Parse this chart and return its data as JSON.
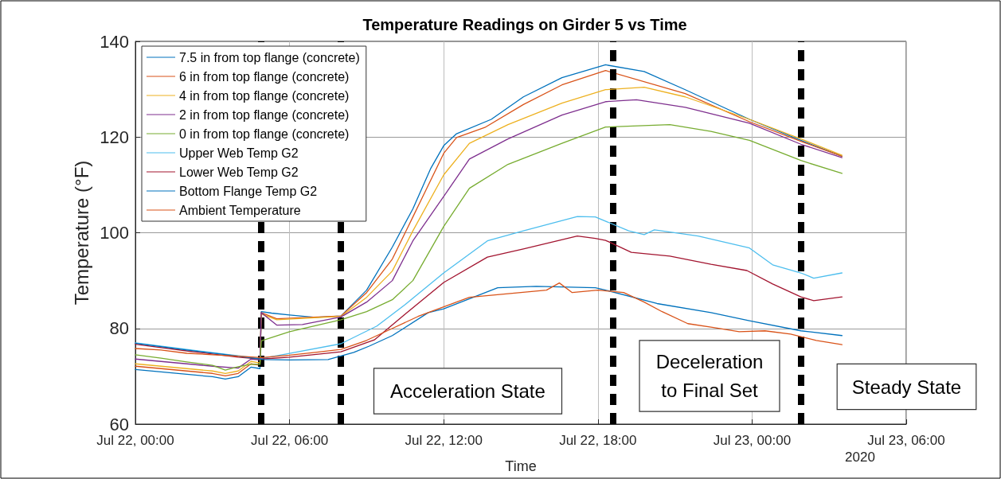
{
  "chart_data": {
    "type": "line",
    "title": "Temperature Readings on Girder 5 vs Time",
    "xlabel": "Time",
    "ylabel": "Temperature (°F)",
    "xlim": [
      "2020-07-22T00:00",
      "2020-07-23T06:00"
    ],
    "xticks": [
      {
        "value": "2020-07-22T00:00",
        "label": "Jul 22, 00:00"
      },
      {
        "value": "2020-07-22T06:00",
        "label": "Jul 22, 06:00"
      },
      {
        "value": "2020-07-22T12:00",
        "label": "Jul 22, 12:00"
      },
      {
        "value": "2020-07-22T18:00",
        "label": "Jul 22, 18:00"
      },
      {
        "value": "2020-07-23T00:00",
        "label": "Jul 23, 00:00"
      },
      {
        "value": "2020-07-23T06:00",
        "label": "Jul 23, 06:00"
      }
    ],
    "ylim": [
      60,
      140
    ],
    "yticks": [
      60,
      80,
      100,
      120,
      140
    ],
    "grid": true,
    "legend": "top left",
    "marker": "none",
    "line_style": "solid",
    "series": [
      {
        "name": "7.5 in from top flange (concrete)",
        "color": "#0072bd",
        "x": [
          "2020-07-22T00:00",
          "2020-07-22T01:00",
          "2020-07-22T02:00",
          "2020-07-22T03:00",
          "2020-07-22T03:30",
          "2020-07-22T04:00",
          "2020-07-22T04:30",
          "2020-07-22T04:51",
          "2020-07-22T04:54",
          "2020-07-22T05:18",
          "2020-07-22T06:00",
          "2020-07-22T07:00",
          "2020-07-22T08:00",
          "2020-07-22T09:00",
          "2020-07-22T10:00",
          "2020-07-22T10:48",
          "2020-07-22T11:30",
          "2020-07-22T12:00",
          "2020-07-22T12:30",
          "2020-07-22T13:51",
          "2020-07-22T15:06",
          "2020-07-22T16:36",
          "2020-07-22T18:18",
          "2020-07-22T19:48",
          "2020-07-22T21:24",
          "2020-07-22T23:54",
          "2020-07-23T01:54",
          "2020-07-23T03:30"
        ],
        "values": [
          71.4,
          70.9,
          70.4,
          69.9,
          69.4,
          69.9,
          71.9,
          71.6,
          83.5,
          83.2,
          82.8,
          82.3,
          82.6,
          88,
          97,
          105,
          113.5,
          118.2,
          120.7,
          123.7,
          128.4,
          132.4,
          135.1,
          133.7,
          129.9,
          123.7,
          119.3,
          116
        ]
      },
      {
        "name": "6 in from top flange (concrete)",
        "color": "#d95319",
        "x": [
          "2020-07-22T00:00",
          "2020-07-22T01:00",
          "2020-07-22T02:00",
          "2020-07-22T03:00",
          "2020-07-22T03:30",
          "2020-07-22T04:00",
          "2020-07-22T04:30",
          "2020-07-22T04:51",
          "2020-07-22T04:54",
          "2020-07-22T05:30",
          "2020-07-22T08:00",
          "2020-07-22T09:00",
          "2020-07-22T10:00",
          "2020-07-22T10:48",
          "2020-07-22T12:00",
          "2020-07-22T12:30",
          "2020-07-22T13:36",
          "2020-07-22T15:06",
          "2020-07-22T16:36",
          "2020-07-22T18:18",
          "2020-07-22T21:24",
          "2020-07-22T23:54",
          "2020-07-23T01:54",
          "2020-07-23T03:30"
        ],
        "values": [
          72.1,
          71.6,
          71.1,
          70.6,
          70.1,
          70.6,
          72.6,
          72.3,
          83.3,
          82,
          82.6,
          87.5,
          94.5,
          103.3,
          116.6,
          119.9,
          122,
          126.8,
          130.9,
          133.9,
          129.1,
          123.2,
          119.1,
          116
        ]
      },
      {
        "name": "4 in from top flange (concrete)",
        "color": "#edb120",
        "x": [
          "2020-07-22T00:00",
          "2020-07-22T01:00",
          "2020-07-22T02:00",
          "2020-07-22T03:00",
          "2020-07-22T03:30",
          "2020-07-22T04:00",
          "2020-07-22T04:30",
          "2020-07-22T04:51",
          "2020-07-22T04:54",
          "2020-07-22T05:30",
          "2020-07-22T08:00",
          "2020-07-22T09:00",
          "2020-07-22T10:00",
          "2020-07-22T10:48",
          "2020-07-22T12:00",
          "2020-07-22T13:00",
          "2020-07-22T14:30",
          "2020-07-22T16:36",
          "2020-07-22T18:18",
          "2020-07-22T19:48",
          "2020-07-22T21:24",
          "2020-07-22T23:54",
          "2020-07-23T01:54",
          "2020-07-23T03:30"
        ],
        "values": [
          72.6,
          72.1,
          71.6,
          71.1,
          70.6,
          71.1,
          73.1,
          72.8,
          83,
          81.8,
          82.5,
          86.5,
          92,
          100.4,
          112.1,
          118.7,
          122.6,
          127.1,
          129.9,
          130.4,
          128.4,
          123.7,
          119.6,
          116.2
        ]
      },
      {
        "name": "2 in from top flange (concrete)",
        "color": "#7e2f8e",
        "x": [
          "2020-07-22T00:00",
          "2020-07-22T01:00",
          "2020-07-22T02:00",
          "2020-07-22T03:00",
          "2020-07-22T04:00",
          "2020-07-22T04:30",
          "2020-07-22T04:51",
          "2020-07-22T04:54",
          "2020-07-22T05:30",
          "2020-07-22T06:30",
          "2020-07-22T08:00",
          "2020-07-22T09:00",
          "2020-07-22T10:00",
          "2020-07-22T10:48",
          "2020-07-22T12:00",
          "2020-07-22T13:00",
          "2020-07-22T14:30",
          "2020-07-22T16:36",
          "2020-07-22T18:18",
          "2020-07-22T19:30",
          "2020-07-22T21:24",
          "2020-07-22T23:54",
          "2020-07-23T01:54",
          "2020-07-23T03:30"
        ],
        "values": [
          73.6,
          73.1,
          72.6,
          72.1,
          71.7,
          73.6,
          73.4,
          83.3,
          80.7,
          80.8,
          82.4,
          85.5,
          90,
          98.3,
          107.6,
          115.4,
          119.6,
          124.6,
          127.4,
          127.8,
          126.2,
          122.9,
          118.5,
          115.7
        ]
      },
      {
        "name": "0 in from top flange (concrete)",
        "color": "#77ac30",
        "x": [
          "2020-07-22T00:00",
          "2020-07-22T01:00",
          "2020-07-22T02:00",
          "2020-07-22T03:00",
          "2020-07-22T03:30",
          "2020-07-22T04:00",
          "2020-07-22T04:30",
          "2020-07-22T04:51",
          "2020-07-22T04:54",
          "2020-07-22T06:00",
          "2020-07-22T08:00",
          "2020-07-22T09:00",
          "2020-07-22T10:00",
          "2020-07-22T10:48",
          "2020-07-22T12:00",
          "2020-07-22T13:00",
          "2020-07-22T14:30",
          "2020-07-22T16:36",
          "2020-07-22T18:18",
          "2020-07-22T20:48",
          "2020-07-22T22:24",
          "2020-07-22T23:54",
          "2020-07-23T01:54",
          "2020-07-23T03:30"
        ],
        "values": [
          74.5,
          73.8,
          73,
          72.3,
          71.3,
          72,
          72.5,
          72.5,
          77.4,
          79.3,
          81.8,
          83.5,
          86,
          90,
          101.3,
          109.3,
          114.3,
          118.7,
          122.1,
          122.6,
          121.2,
          119.3,
          115.1,
          112.4
        ]
      },
      {
        "name": "Upper Web Temp G2",
        "color": "#4dbeee",
        "x": [
          "2020-07-22T00:00",
          "2020-07-22T02:00",
          "2020-07-22T04:00",
          "2020-07-22T04:54",
          "2020-07-22T06:00",
          "2020-07-22T08:00",
          "2020-07-22T09:24",
          "2020-07-22T10:30",
          "2020-07-22T12:00",
          "2020-07-22T13:42",
          "2020-07-22T15:06",
          "2020-07-22T17:12",
          "2020-07-22T17:54",
          "2020-07-22T19:12",
          "2020-07-22T19:48",
          "2020-07-22T20:12",
          "2020-07-22T21:54",
          "2020-07-22T23:54",
          "2020-07-23T00:48",
          "2020-07-23T01:54",
          "2020-07-23T02:24",
          "2020-07-23T03:30"
        ],
        "values": [
          77,
          75.6,
          74.3,
          73.7,
          74.8,
          76.8,
          80.5,
          85,
          91.6,
          98.3,
          100.4,
          103.4,
          103.3,
          100.4,
          99.6,
          100.6,
          99.3,
          96.8,
          93.3,
          91.6,
          90.5,
          91.6
        ]
      },
      {
        "name": "Lower Web Temp G2",
        "color": "#a2142f",
        "x": [
          "2020-07-22T00:00",
          "2020-07-22T02:00",
          "2020-07-22T04:00",
          "2020-07-22T04:54",
          "2020-07-22T06:00",
          "2020-07-22T08:00",
          "2020-07-22T09:18",
          "2020-07-22T10:30",
          "2020-07-22T12:00",
          "2020-07-22T13:42",
          "2020-07-22T15:06",
          "2020-07-22T17:12",
          "2020-07-22T17:54",
          "2020-07-22T18:18",
          "2020-07-22T19:18",
          "2020-07-22T20:48",
          "2020-07-22T22:24",
          "2020-07-22T23:48",
          "2020-07-23T00:48",
          "2020-07-23T01:54",
          "2020-07-23T02:24",
          "2020-07-23T03:30"
        ],
        "values": [
          76.7,
          75.3,
          74,
          73.6,
          74,
          75.1,
          77.6,
          83,
          89.6,
          94.9,
          96.6,
          99.3,
          98.8,
          98.4,
          95.9,
          95.1,
          93.4,
          92.1,
          89.3,
          86.6,
          85.8,
          86.6
        ]
      },
      {
        "name": "Bottom Flange Temp G2",
        "color": "#0072bd",
        "x": [
          "2020-07-22T00:00",
          "2020-07-22T02:00",
          "2020-07-22T04:00",
          "2020-07-22T05:00",
          "2020-07-22T06:00",
          "2020-07-22T07:30",
          "2020-07-22T08:30",
          "2020-07-22T09:06",
          "2020-07-22T10:00",
          "2020-07-22T11:24",
          "2020-07-22T12:00",
          "2020-07-22T14:06",
          "2020-07-22T15:36",
          "2020-07-22T17:54",
          "2020-07-22T18:18",
          "2020-07-22T20:18",
          "2020-07-22T22:24",
          "2020-07-22T23:54",
          "2020-07-23T01:54",
          "2020-07-23T03:30"
        ],
        "values": [
          76.9,
          75.5,
          74.2,
          73.5,
          73.4,
          73.5,
          75,
          76.3,
          78.5,
          83.3,
          84.1,
          88.5,
          88.8,
          88.5,
          88,
          85.2,
          83.3,
          81.6,
          79.5,
          78.5
        ]
      },
      {
        "name": "Ambient Temperature",
        "color": "#d95319",
        "x": [
          "2020-07-22T00:00",
          "2020-07-22T01:00",
          "2020-07-22T02:00",
          "2020-07-22T03:00",
          "2020-07-22T04:00",
          "2020-07-22T04:54",
          "2020-07-22T06:00",
          "2020-07-22T07:00",
          "2020-07-22T08:00",
          "2020-07-22T09:00",
          "2020-07-22T10:00",
          "2020-07-22T11:00",
          "2020-07-22T12:00",
          "2020-07-22T13:00",
          "2020-07-22T14:00",
          "2020-07-22T15:00",
          "2020-07-22T16:00",
          "2020-07-22T16:30",
          "2020-07-22T17:00",
          "2020-07-22T18:00",
          "2020-07-22T19:00",
          "2020-07-22T19:48",
          "2020-07-22T20:30",
          "2020-07-22T21:30",
          "2020-07-22T22:30",
          "2020-07-22T23:30",
          "2020-07-23T00:30",
          "2020-07-23T01:30",
          "2020-07-23T02:30",
          "2020-07-23T03:30"
        ],
        "values": [
          75.8,
          75.5,
          74.8,
          74.5,
          74.2,
          73.9,
          74.4,
          75,
          75.6,
          77.5,
          80,
          82.5,
          84.5,
          86.5,
          87,
          87.5,
          88,
          89.5,
          87.5,
          88,
          87.5,
          85.5,
          83.5,
          81,
          80.2,
          79.3,
          79.5,
          78.8,
          77.5,
          76.6
        ]
      }
    ],
    "ref_lines": [
      {
        "axis": "x",
        "value": "2020-07-22T04:54",
        "color": "#000000",
        "line_style": "dashed"
      },
      {
        "axis": "x",
        "value": "2020-07-22T08:00",
        "color": "#000000",
        "line_style": "dashed"
      },
      {
        "axis": "x",
        "value": "2020-07-22T18:36",
        "color": "#000000",
        "line_style": "dashed"
      },
      {
        "axis": "x",
        "value": "2020-07-23T01:54",
        "color": "#000000",
        "line_style": "dashed"
      }
    ],
    "annotations": [
      "Acceleration State",
      "Deceleration\nto Final Set",
      "Steady State",
      "2020"
    ]
  }
}
